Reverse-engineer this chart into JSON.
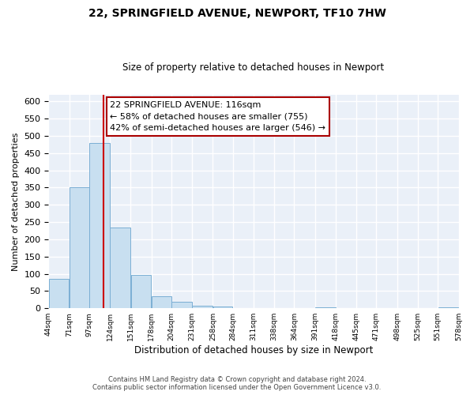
{
  "title": "22, SPRINGFIELD AVENUE, NEWPORT, TF10 7HW",
  "subtitle": "Size of property relative to detached houses in Newport",
  "xlabel": "Distribution of detached houses by size in Newport",
  "ylabel": "Number of detached properties",
  "bar_color": "#c8dff0",
  "bar_edge_color": "#7bafd4",
  "background_color": "#eaf0f8",
  "grid_color": "#ffffff",
  "bin_edges": [
    44,
    71,
    97,
    124,
    151,
    178,
    204,
    231,
    258,
    284,
    311,
    338,
    364,
    391,
    418,
    445,
    471,
    498,
    525,
    551,
    578
  ],
  "bin_labels": [
    "44sqm",
    "71sqm",
    "97sqm",
    "124sqm",
    "151sqm",
    "178sqm",
    "204sqm",
    "231sqm",
    "258sqm",
    "284sqm",
    "311sqm",
    "338sqm",
    "364sqm",
    "391sqm",
    "418sqm",
    "445sqm",
    "471sqm",
    "498sqm",
    "525sqm",
    "551sqm",
    "578sqm"
  ],
  "counts": [
    85,
    350,
    480,
    235,
    97,
    35,
    18,
    8,
    4,
    0,
    0,
    0,
    0,
    2,
    0,
    0,
    0,
    0,
    0,
    2
  ],
  "red_line_x": 116,
  "annotation_lines": [
    "22 SPRINGFIELD AVENUE: 116sqm",
    "← 58% of detached houses are smaller (755)",
    "42% of semi-detached houses are larger (546) →"
  ],
  "ylim": [
    0,
    620
  ],
  "yticks": [
    0,
    50,
    100,
    150,
    200,
    250,
    300,
    350,
    400,
    450,
    500,
    550,
    600
  ],
  "footer_line1": "Contains HM Land Registry data © Crown copyright and database right 2024.",
  "footer_line2": "Contains public sector information licensed under the Open Government Licence v3.0."
}
